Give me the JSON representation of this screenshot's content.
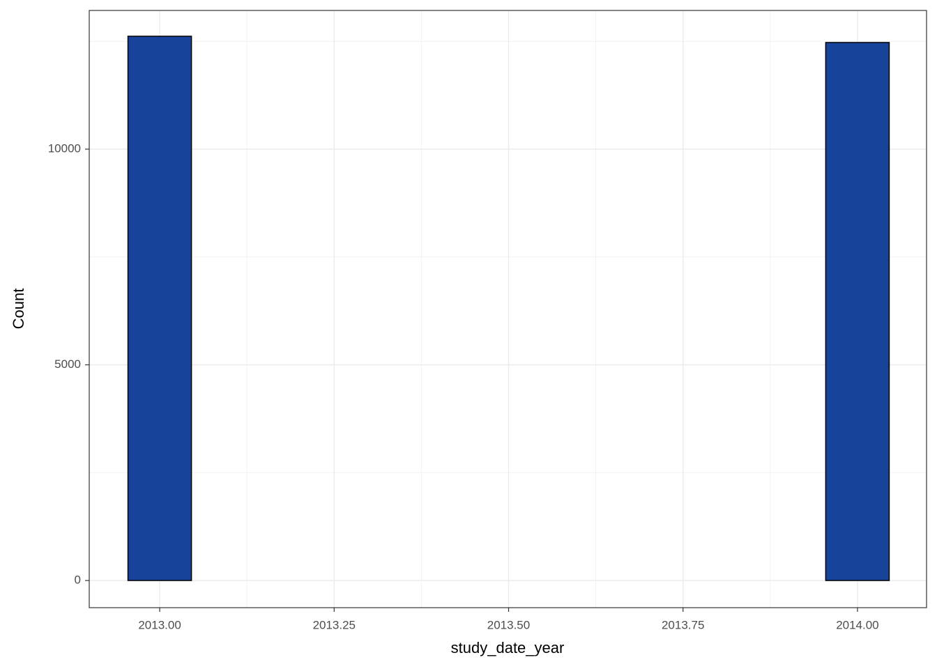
{
  "chart_data": {
    "type": "histogram",
    "x_label": "study_date_year",
    "y_label": "Count",
    "bins": [
      2012.9545,
      2013.0455,
      2013.1364,
      2013.2273,
      2013.3182,
      2013.4091,
      2013.5,
      2013.5909,
      2013.6818,
      2013.7727,
      2013.8636,
      2013.9545,
      2014.0455
    ],
    "values": [
      12617,
      0,
      0,
      0,
      0,
      0,
      0,
      0,
      0,
      0,
      0,
      12472
    ],
    "color": "#17449a",
    "edge_color": "#000000",
    "xlim": [
      2012.899,
      2014.099
    ],
    "ylim": [
      -630,
      13215
    ],
    "xticks": [
      {
        "value": 2013,
        "label": "2013.00"
      },
      {
        "value": 2013.25,
        "label": "2013.25"
      },
      {
        "value": 2013.5,
        "label": "2013.50"
      },
      {
        "value": 2013.75,
        "label": "2013.75"
      },
      {
        "value": 2014,
        "label": "2014.00"
      }
    ],
    "yticks": [
      0,
      5000,
      10000
    ],
    "x_minor_ticks": [
      2013.125,
      2013.375,
      2013.625,
      2013.875
    ],
    "y_minor_ticks": [
      2500,
      7500,
      12500
    ],
    "grid": true
  }
}
